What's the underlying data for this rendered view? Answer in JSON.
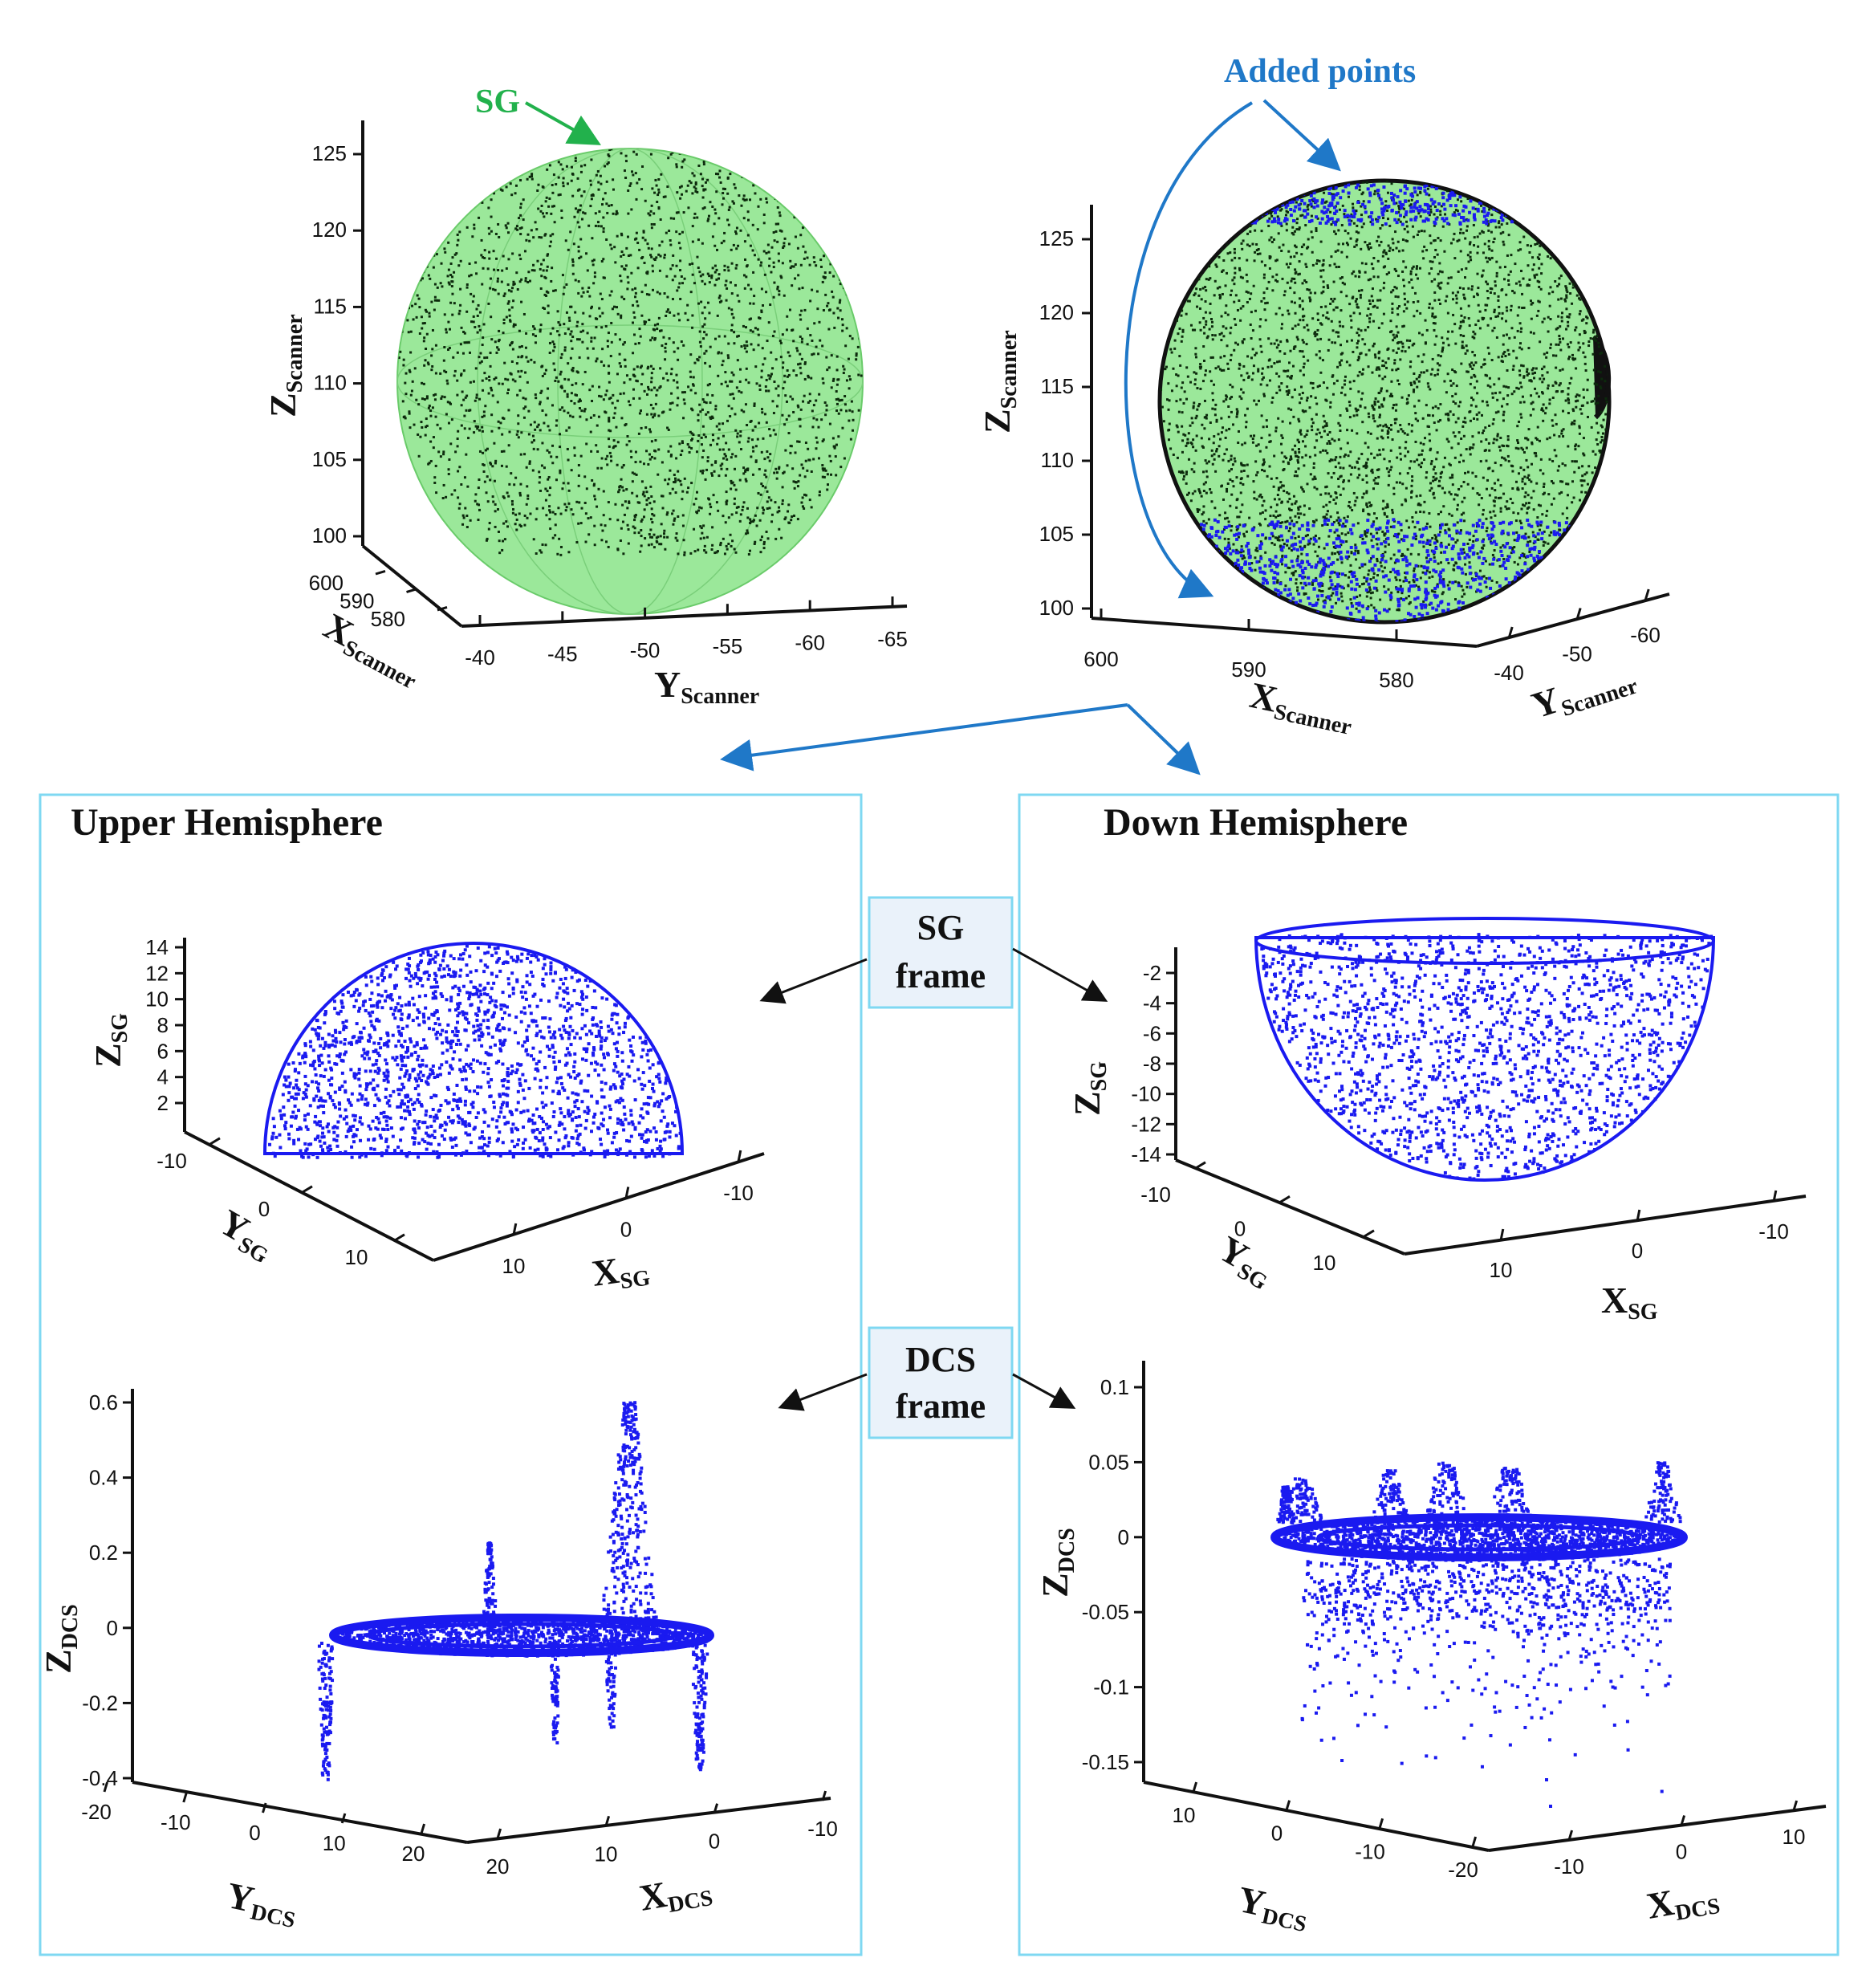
{
  "scanner_left": {
    "annotation": "SG",
    "z_axis": {
      "main": "Z",
      "sub": "Scanner",
      "ticks": [
        "125",
        "120",
        "115",
        "110",
        "105",
        "100"
      ]
    },
    "x_axis": {
      "main": "X",
      "sub": "Scanner",
      "ticks": [
        "600",
        "590",
        "580"
      ]
    },
    "y_axis": {
      "main": "Y",
      "sub": "Scanner",
      "ticks": [
        "-40",
        "-45",
        "-50",
        "-55",
        "-60",
        "-65"
      ]
    }
  },
  "scanner_right": {
    "annotation": "Added points",
    "z_axis": {
      "main": "Z",
      "sub": "Scanner",
      "ticks": [
        "125",
        "120",
        "115",
        "110",
        "105",
        "100"
      ]
    },
    "x_axis": {
      "main": "X",
      "sub": "Scanner",
      "ticks": [
        "600",
        "590",
        "580"
      ]
    },
    "y_axis": {
      "main": "Y",
      "sub": "Scanner",
      "ticks": [
        "-40",
        "-50",
        "-60"
      ]
    }
  },
  "labels": {
    "upper_title": "Upper Hemisphere",
    "down_title": "Down Hemisphere",
    "sg_frame": [
      "SG",
      "frame"
    ],
    "dcs_frame": [
      "DCS",
      "frame"
    ]
  },
  "upper_sg": {
    "z_axis": {
      "main": "Z",
      "sub": "SG",
      "ticks": [
        "14",
        "12",
        "10",
        "8",
        "6",
        "4",
        "2"
      ]
    },
    "y_axis": {
      "main": "Y",
      "sub": "SG",
      "ticks": [
        "-10",
        "0",
        "10"
      ]
    },
    "x_axis": {
      "main": "X",
      "sub": "SG",
      "ticks": [
        "10",
        "0",
        "-10"
      ]
    }
  },
  "down_sg": {
    "z_axis": {
      "main": "Z",
      "sub": "SG",
      "ticks": [
        "-2",
        "-4",
        "-6",
        "-8",
        "-10",
        "-12",
        "-14"
      ]
    },
    "y_axis": {
      "main": "Y",
      "sub": "SG",
      "ticks": [
        "-10",
        "0",
        "10"
      ]
    },
    "x_axis": {
      "main": "X",
      "sub": "SG",
      "ticks": [
        "10",
        "0",
        "-10"
      ]
    }
  },
  "upper_dcs": {
    "z_axis": {
      "main": "Z",
      "sub": "DCS",
      "ticks": [
        "0.6",
        "0.4",
        "0.2",
        "0",
        "-0.2",
        "-0.4"
      ]
    },
    "y_axis": {
      "main": "Y",
      "sub": "DCS",
      "ticks": [
        "-20",
        "-10",
        "0",
        "10",
        "20"
      ]
    },
    "x_axis": {
      "main": "X",
      "sub": "DCS",
      "ticks": [
        "20",
        "10",
        "0",
        "-10"
      ]
    }
  },
  "down_dcs": {
    "z_axis": {
      "main": "Z",
      "sub": "DCS",
      "ticks": [
        "0.1",
        "0.05",
        "0",
        "-0.05",
        "-0.1",
        "-0.15"
      ]
    },
    "y_axis": {
      "main": "Y",
      "sub": "DCS",
      "ticks": [
        "10",
        "0",
        "-10",
        "-20"
      ]
    },
    "x_axis": {
      "main": "X",
      "sub": "DCS",
      "ticks": [
        "-10",
        "0",
        "10"
      ]
    }
  },
  "colors": {
    "sphere_fill": "#9BE89A",
    "sg_green": "#22B14C",
    "point_blue": "#1A1AF0",
    "arrow_blue": "#1F78C8",
    "panel_border": "#7FD8F2",
    "box_fill": "#EAF2FA"
  }
}
